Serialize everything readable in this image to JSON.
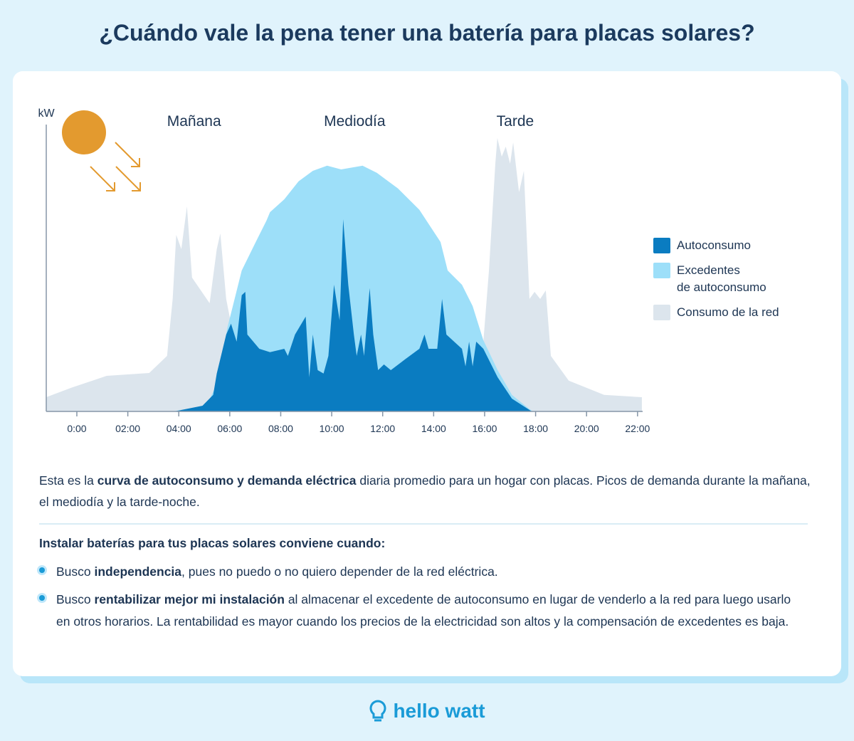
{
  "header": {
    "title": "¿Cuándo vale la pena tener una batería para placas solares?"
  },
  "chart_data": {
    "type": "area",
    "y_label": "kW",
    "annotations": [
      "Mañana",
      "Mediodía",
      "Tarde"
    ],
    "xlim": [
      -1.2,
      22.2
    ],
    "ylim": [
      0,
      10
    ],
    "xticks": [
      {
        "value": 0,
        "label": "0:00"
      },
      {
        "value": 2,
        "label": "02:00"
      },
      {
        "value": 4,
        "label": "04:00"
      },
      {
        "value": 6,
        "label": "06:00"
      },
      {
        "value": 8,
        "label": "08:00"
      },
      {
        "value": 10,
        "label": "10:00"
      },
      {
        "value": 12,
        "label": "12:00"
      },
      {
        "value": 14,
        "label": "14:00"
      },
      {
        "value": 16,
        "label": "16:00"
      },
      {
        "value": 18,
        "label": "18:00"
      },
      {
        "value": 20,
        "label": "20:00"
      },
      {
        "value": 22,
        "label": "22:00"
      }
    ],
    "series": [
      {
        "name": "Consumo de la red",
        "color": "#dce5ed",
        "x": [
          -1.2,
          -0.22,
          1.17,
          2.84,
          3.54,
          3.76,
          3.9,
          4.1,
          4.32,
          4.52,
          5.21,
          5.49,
          5.63,
          5.86,
          6.5,
          15.5,
          15.95,
          16.17,
          16.42,
          16.5,
          16.67,
          16.83,
          17.0,
          17.12,
          17.35,
          17.54,
          17.76,
          17.96,
          18.18,
          18.4,
          18.6,
          19.3,
          20.69,
          22.17
        ],
        "values": [
          0.5,
          0.83,
          1.25,
          1.35,
          1.95,
          3.95,
          6.2,
          5.7,
          7.2,
          4.7,
          3.8,
          5.7,
          6.25,
          3.95,
          1.0,
          1.5,
          2.45,
          4.95,
          8.7,
          9.6,
          8.95,
          9.3,
          8.7,
          9.45,
          7.7,
          8.45,
          3.95,
          4.2,
          3.95,
          4.25,
          1.95,
          1.08,
          0.58,
          0.5
        ]
      },
      {
        "name": "Excedentes\nde autoconsumo",
        "color": "#9ddff9",
        "x": [
          3.74,
          5.08,
          5.49,
          5.91,
          6.47,
          7.02,
          7.44,
          7.58,
          8.14,
          8.7,
          9.26,
          9.82,
          10.37,
          11.21,
          11.77,
          12.6,
          13.44,
          14.27,
          14.55,
          15.11,
          15.53,
          15.95,
          16.51,
          17.07,
          17.76,
          17.9
        ],
        "values": [
          0,
          0.2,
          0.95,
          2.95,
          4.95,
          5.95,
          6.7,
          7.0,
          7.45,
          8.08,
          8.45,
          8.63,
          8.5,
          8.63,
          8.38,
          7.83,
          7.08,
          5.95,
          4.95,
          4.45,
          3.7,
          2.5,
          1.45,
          0.58,
          0.08,
          0
        ]
      },
      {
        "name": "Autoconsumo",
        "color": "#0a7cc1",
        "x": [
          3.82,
          4.93,
          5.35,
          5.49,
          5.86,
          6.05,
          6.27,
          6.47,
          6.61,
          6.69,
          7.16,
          7.58,
          8.14,
          8.28,
          8.56,
          8.98,
          9.12,
          9.26,
          9.45,
          9.68,
          9.87,
          10.09,
          10.31,
          10.45,
          10.65,
          10.87,
          10.98,
          11.15,
          11.27,
          11.49,
          11.63,
          11.82,
          12.05,
          12.32,
          12.88,
          13.44,
          13.64,
          13.8,
          14.14,
          14.33,
          14.5,
          15.11,
          15.25,
          15.39,
          15.53,
          15.67,
          15.95,
          16.51,
          17.07,
          17.85
        ],
        "values": [
          0,
          0.2,
          0.58,
          1.33,
          2.7,
          3.08,
          2.45,
          4.08,
          4.2,
          2.7,
          2.2,
          2.08,
          2.2,
          1.95,
          2.7,
          3.33,
          1.2,
          2.7,
          1.45,
          1.33,
          1.95,
          4.45,
          3.2,
          6.75,
          4.45,
          2.7,
          1.95,
          2.7,
          1.95,
          4.33,
          2.7,
          1.45,
          1.65,
          1.45,
          1.83,
          2.2,
          2.7,
          2.2,
          2.2,
          3.95,
          2.7,
          2.2,
          1.58,
          2.45,
          1.58,
          2.45,
          2.2,
          1.2,
          0.45,
          0
        ]
      }
    ],
    "legend_order": [
      2,
      1,
      0
    ]
  },
  "text": {
    "intro": [
      "Esta es la ",
      "curva de autoconsumo y demanda eléctrica",
      " diaria promedio para un hogar con placas. Picos de demanda durante la mañana, el mediodía y la tarde-noche."
    ],
    "list_title": "Instalar baterías para tus placas solares conviene cuando:",
    "bullets": [
      [
        "Busco ",
        "independencia",
        ", pues no puedo o no quiero depender de la red eléctrica."
      ],
      [
        "Busco ",
        "rentabilizar mejor mi instalación",
        " al almacenar el excedente de autoconsumo en lugar de venderlo a la red para luego usarlo en otros horarios. La rentabilidad es mayor cuando los precios de la electricidad son altos y la compensación de excedentes es baja."
      ]
    ]
  },
  "footer": {
    "brand": "hello watt"
  }
}
